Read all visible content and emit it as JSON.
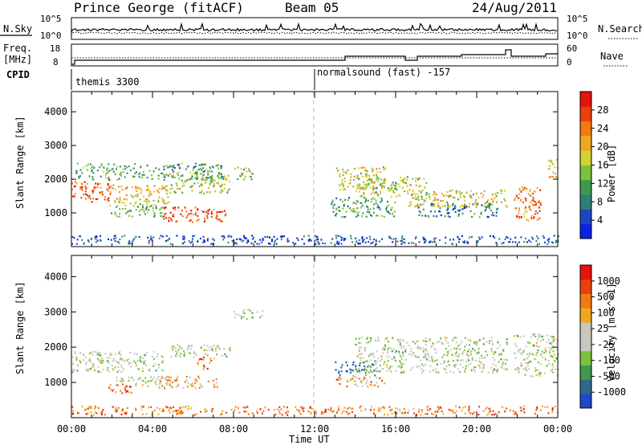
{
  "header": {
    "station": "Prince George (fitACF)",
    "beam": "Beam 05",
    "date": "24/Aug/2011"
  },
  "noise_panel": {
    "left_label": "N.Sky",
    "right_label": "N.Search",
    "left_ticks": [
      "10^5",
      "10^0"
    ],
    "right_ticks": [
      "10^5",
      "10^0"
    ]
  },
  "freq_panel": {
    "left_label_1": "Freq.",
    "left_label_2": "[MHz]",
    "right_label": "Nave",
    "left_ticks": [
      "18",
      "8"
    ],
    "right_ticks": [
      "60",
      "0"
    ]
  },
  "cpid": {
    "label": "CPID",
    "modes": [
      {
        "name": "themis 3300",
        "start": "00:00"
      },
      {
        "name": "normalsound (fast) -157",
        "start": "12:00"
      }
    ]
  },
  "x_axis": {
    "title": "Time UT",
    "ticks": [
      "00:00",
      "04:00",
      "08:00",
      "12:00",
      "16:00",
      "20:00",
      "00:00"
    ]
  },
  "chart_data": [
    {
      "type": "heatmap",
      "title": "",
      "xlabel": "Time UT",
      "ylabel": "Slant Range [km]",
      "y_ticks": [
        "1000",
        "2000",
        "3000",
        "4000"
      ],
      "ylim": [
        0,
        4600
      ],
      "xlim_hours": [
        0,
        24
      ],
      "colorbar": {
        "label": "Power [dB]",
        "ticks": [
          "4",
          "8",
          "12",
          "16",
          "20",
          "24",
          "28"
        ],
        "range": [
          0,
          30
        ],
        "colors": [
          "#0c22e0",
          "#1f46c2",
          "#2f7f78",
          "#3d9950",
          "#7cc23a",
          "#d3d231",
          "#f0a820",
          "#f27a12",
          "#ec3f0f",
          "#e3140b"
        ]
      },
      "bands": [
        {
          "t0": 0.0,
          "t1": 2.0,
          "r0": 1350,
          "r1": 1950,
          "level": 0.8
        },
        {
          "t0": 2.0,
          "t1": 4.8,
          "r0": 1300,
          "r1": 1850,
          "level": 0.6
        },
        {
          "t0": 1.8,
          "t1": 4.5,
          "r0": 900,
          "r1": 1300,
          "level": 0.45
        },
        {
          "t0": 4.5,
          "t1": 7.6,
          "r0": 750,
          "r1": 1200,
          "level": 0.85
        },
        {
          "t0": 4.8,
          "t1": 7.8,
          "r0": 1600,
          "r1": 2200,
          "level": 0.5
        },
        {
          "t0": 0.2,
          "t1": 7.5,
          "r0": 2000,
          "r1": 2500,
          "level": 0.35
        },
        {
          "t0": 8.0,
          "t1": 9.0,
          "r0": 2000,
          "r1": 2400,
          "level": 0.45
        },
        {
          "t0": 13.0,
          "t1": 15.5,
          "r0": 1700,
          "r1": 2400,
          "level": 0.55
        },
        {
          "t0": 14.0,
          "t1": 17.5,
          "r0": 1500,
          "r1": 2100,
          "level": 0.5
        },
        {
          "t0": 16.5,
          "t1": 21.5,
          "r0": 1200,
          "r1": 1700,
          "level": 0.55
        },
        {
          "t0": 12.8,
          "t1": 16.0,
          "r0": 900,
          "r1": 1500,
          "level": 0.35
        },
        {
          "t0": 17.0,
          "t1": 21.0,
          "r0": 900,
          "r1": 1300,
          "level": 0.25
        },
        {
          "t0": 21.8,
          "t1": 23.2,
          "r0": 800,
          "r1": 1800,
          "level": 0.75
        },
        {
          "t0": 23.5,
          "t1": 24.0,
          "r0": 2000,
          "r1": 2600,
          "level": 0.6
        },
        {
          "t0": 0.0,
          "t1": 24.0,
          "r0": 100,
          "r1": 350,
          "level": 0.15
        }
      ]
    },
    {
      "type": "heatmap",
      "title": "",
      "xlabel": "Time UT",
      "ylabel": "Slant Range [km]",
      "y_ticks": [
        "1000",
        "2000",
        "3000",
        "4000"
      ],
      "ylim": [
        0,
        4600
      ],
      "xlim_hours": [
        0,
        24
      ],
      "colorbar": {
        "label": "Velocity [m s^-1]",
        "ticks": [
          "1000",
          "500",
          "100",
          "25",
          "-25",
          "-100",
          "-500",
          "-1000"
        ],
        "colors": [
          "#2148c8",
          "#31698a",
          "#3d9950",
          "#7cc23a",
          "#c8c8c0",
          "#c8c8c0",
          "#f0a820",
          "#f27a12",
          "#ec3f0f",
          "#e3140b"
        ]
      },
      "bands": [
        {
          "t0": 0.0,
          "t1": 4.5,
          "r0": 1300,
          "r1": 1900,
          "level": 0.45
        },
        {
          "t0": 2.0,
          "t1": 4.8,
          "r0": 900,
          "r1": 1200,
          "level": 0.45
        },
        {
          "t0": 4.0,
          "t1": 7.2,
          "r0": 850,
          "r1": 1200,
          "level": 0.65
        },
        {
          "t0": 6.2,
          "t1": 6.9,
          "r0": 1400,
          "r1": 1750,
          "level": 0.8
        },
        {
          "t0": 1.8,
          "t1": 3.0,
          "r0": 700,
          "r1": 1000,
          "level": 0.8
        },
        {
          "t0": 4.8,
          "t1": 7.8,
          "r0": 1700,
          "r1": 2100,
          "level": 0.45
        },
        {
          "t0": 8.0,
          "t1": 9.5,
          "r0": 2800,
          "r1": 3100,
          "level": 0.45
        },
        {
          "t0": 13.0,
          "t1": 15.0,
          "r0": 1200,
          "r1": 1600,
          "level": 0.15
        },
        {
          "t0": 13.0,
          "t1": 15.5,
          "r0": 900,
          "r1": 1200,
          "level": 0.65
        },
        {
          "t0": 14.0,
          "t1": 21.5,
          "r0": 1300,
          "r1": 2300,
          "level": 0.45
        },
        {
          "t0": 21.8,
          "t1": 24.0,
          "r0": 1200,
          "r1": 2400,
          "level": 0.45
        },
        {
          "t0": 0.0,
          "t1": 24.0,
          "r0": 100,
          "r1": 350,
          "level": 0.75
        }
      ]
    }
  ]
}
